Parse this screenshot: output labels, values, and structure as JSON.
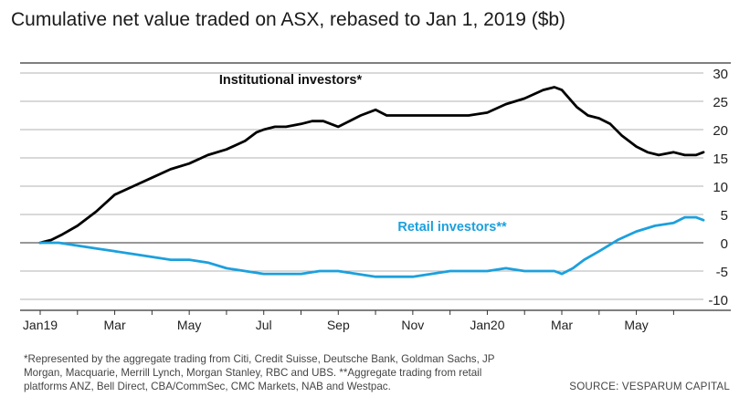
{
  "title": "Cumulative net value traded on ASX, rebased to Jan 1, 2019 ($b)",
  "footnote": "*Represented by the aggregate trading from Citi, Credit Suisse, Deutsche Bank, Goldman Sachs, JP Morgan, Macquarie, Merrill Lynch, Morgan Stanley, RBC and UBS. **Aggregate trading from retail platforms ANZ, Bell Direct, CBA/CommSec, CMC Markets, NAB and Westpac.",
  "source": "SOURCE: VESPARUM CAPITAL",
  "chart_data": {
    "type": "line",
    "title": "Cumulative net value traded on ASX, rebased to Jan 1, 2019 ($b)",
    "xlabel": "",
    "ylabel": "",
    "ylim": [
      -10,
      30
    ],
    "yticks": [
      30,
      25,
      20,
      15,
      10,
      5,
      0,
      -5,
      -10
    ],
    "xticks": [
      {
        "label": "Jan19",
        "x": 0
      },
      {
        "label": "Mar",
        "x": 2
      },
      {
        "label": "May",
        "x": 4
      },
      {
        "label": "Jul",
        "x": 6
      },
      {
        "label": "Sep",
        "x": 8
      },
      {
        "label": "Nov",
        "x": 10
      },
      {
        "label": "Jan20",
        "x": 12
      },
      {
        "label": "Mar",
        "x": 14
      },
      {
        "label": "May",
        "x": 16
      }
    ],
    "xlim": [
      0,
      17.8
    ],
    "grid": true,
    "series": [
      {
        "name": "Institutional investors*",
        "color": "#000000",
        "x": [
          0,
          0.3,
          0.6,
          1.0,
          1.5,
          2.0,
          2.5,
          3.0,
          3.5,
          4.0,
          4.5,
          5.0,
          5.5,
          5.8,
          6.0,
          6.3,
          6.6,
          7.0,
          7.3,
          7.6,
          8.0,
          8.3,
          8.6,
          9.0,
          9.3,
          9.6,
          10.0,
          10.5,
          11.0,
          11.5,
          12.0,
          12.5,
          13.0,
          13.5,
          13.8,
          14.0,
          14.2,
          14.4,
          14.7,
          15.0,
          15.3,
          15.6,
          16.0,
          16.3,
          16.6,
          17.0,
          17.3,
          17.6,
          17.8
        ],
        "y": [
          0,
          0.5,
          1.5,
          3,
          5.5,
          8.5,
          10,
          11.5,
          13,
          14,
          15.5,
          16.5,
          18,
          19.5,
          20,
          20.5,
          20.5,
          21,
          21.5,
          21.5,
          20.5,
          21.5,
          22.5,
          23.5,
          22.5,
          22.5,
          22.5,
          22.5,
          22.5,
          22.5,
          23,
          24.5,
          25.5,
          27,
          27.5,
          27,
          25.5,
          24,
          22.5,
          22,
          21,
          19,
          17,
          16,
          15.5,
          16,
          15.5,
          15.5,
          16
        ]
      },
      {
        "name": "Retail investors**",
        "color": "#1ca0dd",
        "x": [
          0,
          0.5,
          1.0,
          1.5,
          2.0,
          2.5,
          3.0,
          3.5,
          4.0,
          4.5,
          5.0,
          5.5,
          6.0,
          6.5,
          7.0,
          7.5,
          8.0,
          8.5,
          9.0,
          9.5,
          10.0,
          10.5,
          11.0,
          11.5,
          12.0,
          12.5,
          13.0,
          13.5,
          13.8,
          14.0,
          14.3,
          14.6,
          15.0,
          15.5,
          16.0,
          16.5,
          17.0,
          17.3,
          17.6,
          17.8
        ],
        "y": [
          0,
          0,
          -0.5,
          -1,
          -1.5,
          -2,
          -2.5,
          -3,
          -3,
          -3.5,
          -4.5,
          -5,
          -5.5,
          -5.5,
          -5.5,
          -5,
          -5,
          -5.5,
          -6,
          -6,
          -6,
          -5.5,
          -5,
          -5,
          -5,
          -4.5,
          -5,
          -5,
          -5,
          -5.5,
          -4.5,
          -3,
          -1.5,
          0.5,
          2,
          3,
          3.5,
          4.5,
          4.5,
          4
        ]
      }
    ],
    "annotations": [
      {
        "text": "Institutional investors*",
        "series": 0
      },
      {
        "text": "Retail investors**",
        "series": 1
      }
    ]
  }
}
